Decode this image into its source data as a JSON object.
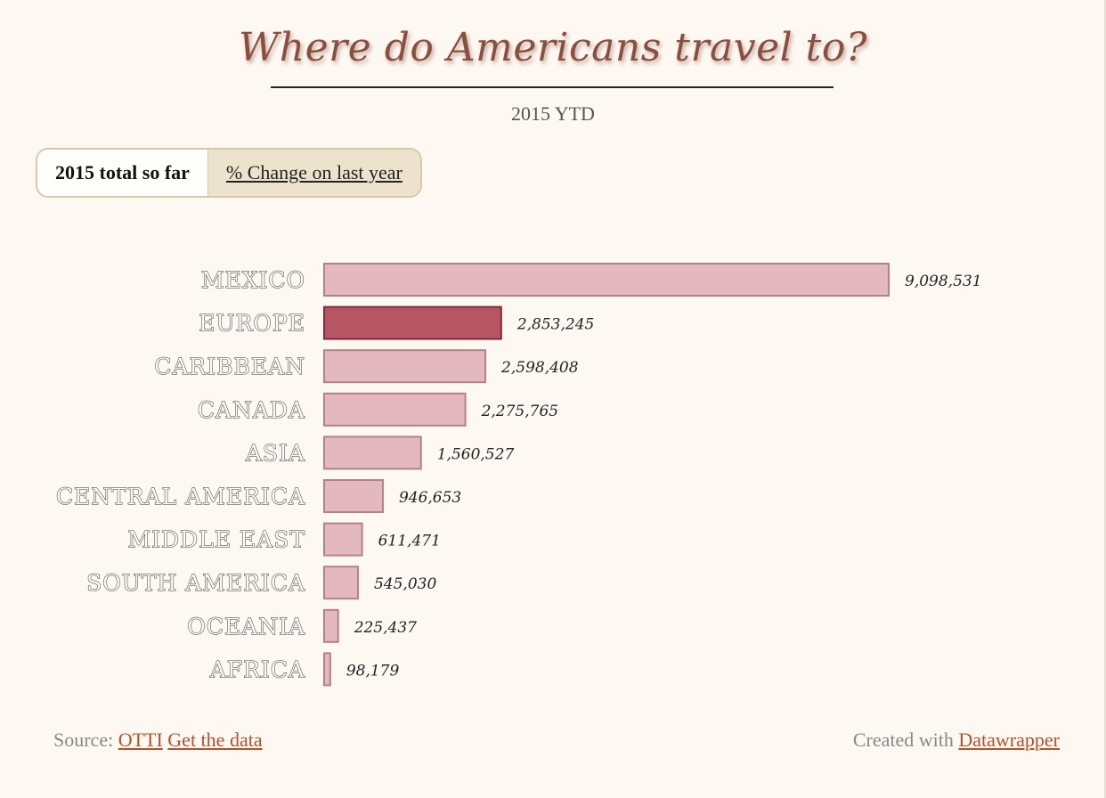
{
  "header": {
    "title": "Where do Americans travel to?",
    "subtitle": "2015 YTD"
  },
  "tabs": [
    {
      "label": "2015 total so far",
      "active": true
    },
    {
      "label": "% Change on last year",
      "active": false
    }
  ],
  "colors": {
    "bar": "#e3b9bf",
    "bar_border": "#b5808a",
    "highlight": "#b85565",
    "highlight_border": "#7d2d3c"
  },
  "chart_data": {
    "type": "bar",
    "orientation": "horizontal",
    "categories": [
      "MEXICO",
      "EUROPE",
      "CARIBBEAN",
      "CANADA",
      "ASIA",
      "CENTRAL AMERICA",
      "MIDDLE EAST",
      "SOUTH AMERICA",
      "OCEANIA",
      "AFRICA"
    ],
    "values": [
      9098531,
      2853245,
      2598408,
      2275765,
      1560527,
      946653,
      611471,
      545030,
      225437,
      98179
    ],
    "value_labels": [
      "9,098,531",
      "2,853,245",
      "2,598,408",
      "2,275,765",
      "1,560,527",
      "946,653",
      "611,471",
      "545,030",
      "225,437",
      "98,179"
    ],
    "highlighted": "EUROPE",
    "xlim": [
      0,
      9098531
    ],
    "grid": false,
    "legend": "none"
  },
  "footer": {
    "source_label": "Source:",
    "source_link": "OTTI",
    "data_link": "Get the data",
    "created_label": "Created with",
    "created_link": "Datawrapper"
  }
}
